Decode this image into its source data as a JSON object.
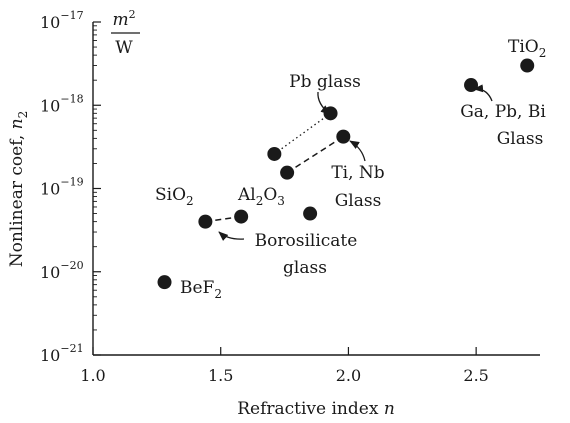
{
  "chart_data": {
    "type": "scatter",
    "xlabel": "Refractive index",
    "xlabel_var": "n",
    "ylabel": "Nonlinear coef,",
    "ylabel_var": "n",
    "ylabel_sub": "2",
    "xlim": [
      1.0,
      2.75
    ],
    "ylim_log10": [
      -21,
      -17
    ],
    "y_scale": "log",
    "grid": false,
    "x_ticks": [
      {
        "value": 1.0,
        "label": "1.0"
      },
      {
        "value": 1.5,
        "label": "1.5"
      },
      {
        "value": 2.0,
        "label": "2.0"
      },
      {
        "value": 2.5,
        "label": "2.5"
      }
    ],
    "y_ticks": [
      {
        "exp": -17,
        "base": "10",
        "sup": "−17"
      },
      {
        "exp": -18,
        "base": "10",
        "sup": "−18"
      },
      {
        "exp": -19,
        "base": "10",
        "sup": "−19"
      },
      {
        "exp": -20,
        "base": "10",
        "sup": "−20"
      },
      {
        "exp": -21,
        "base": "10",
        "sup": "−21"
      }
    ],
    "unit": {
      "numerator_base": "m",
      "numerator_sup": "2",
      "denominator": "W"
    },
    "points": [
      {
        "id": "bef2",
        "x": 1.28,
        "y": 7.5e-21
      },
      {
        "id": "sio2",
        "x": 1.44,
        "y": 4e-20
      },
      {
        "id": "borosilicate",
        "x": 1.58,
        "y": 4.6e-20
      },
      {
        "id": "pb-glass-low",
        "x": 1.71,
        "y": 2.6e-19
      },
      {
        "id": "ti-nb-low",
        "x": 1.76,
        "y": 1.55e-19
      },
      {
        "id": "al2o3",
        "x": 1.85,
        "y": 5e-20
      },
      {
        "id": "pb-glass-high",
        "x": 1.93,
        "y": 8e-19
      },
      {
        "id": "ti-nb-high",
        "x": 1.98,
        "y": 4.2e-19
      },
      {
        "id": "ga-pb-bi",
        "x": 2.48,
        "y": 1.75e-18
      },
      {
        "id": "tio2",
        "x": 2.7,
        "y": 3e-18
      }
    ],
    "connectors": [
      {
        "from": "sio2",
        "to": "borosilicate",
        "style": "dashed"
      },
      {
        "from": "pb-glass-low",
        "to": "pb-glass-high",
        "style": "dotted"
      },
      {
        "from": "ti-nb-low",
        "to": "ti-nb-high",
        "style": "dashed"
      }
    ],
    "labels": {
      "tio2": {
        "base": "TiO",
        "sub": "2"
      },
      "sio2": {
        "base": "SiO",
        "sub": "2"
      },
      "al2o3": {
        "p1": "Al",
        "s1": "2",
        "p2": "O",
        "s2": "3"
      },
      "bef2": {
        "base": "BeF",
        "sub": "2"
      },
      "pb_glass": "Pb glass",
      "ti_nb": [
        "Ti, Nb",
        "Glass"
      ],
      "ga_pb_bi": [
        "Ga, Pb, Bi",
        "Glass"
      ],
      "borosilicate": [
        "Borosilicate",
        "glass"
      ]
    }
  }
}
